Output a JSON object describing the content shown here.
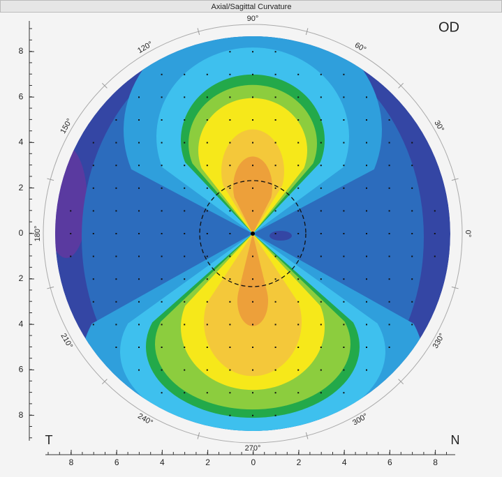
{
  "title": "Axial/Sagittal Curvature",
  "eye": "OD",
  "corners": {
    "left": "T",
    "right": "N"
  },
  "angle_labels": [
    "90°",
    "60°",
    "30°",
    "0°",
    "330°",
    "300°",
    "270°",
    "240°",
    "210°",
    "180°",
    "150°",
    "120°"
  ],
  "y_axis_labels": [
    "8",
    "6",
    "4",
    "2",
    "0",
    "2",
    "4",
    "6",
    "8"
  ],
  "x_axis_labels": [
    "8",
    "6",
    "4",
    "2",
    "0",
    "2",
    "4",
    "6",
    "8"
  ]
}
